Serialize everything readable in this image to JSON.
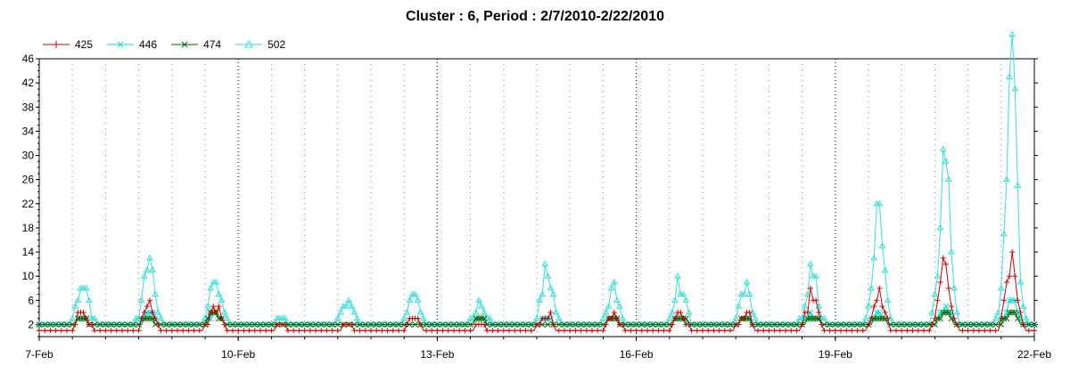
{
  "chart_data": {
    "type": "line",
    "title": "Cluster : 6, Period : 2/7/2010-2/22/2010",
    "xlabel": "",
    "ylabel": "",
    "x_range_days": [
      0,
      15
    ],
    "ylim": [
      0,
      46
    ],
    "yticks": [
      2,
      6,
      10,
      14,
      18,
      22,
      26,
      30,
      34,
      38,
      42,
      46
    ],
    "xticks": [
      {
        "day": 0,
        "label": "7-Feb"
      },
      {
        "day": 3,
        "label": "10-Feb"
      },
      {
        "day": 6,
        "label": "13-Feb"
      },
      {
        "day": 9,
        "label": "16-Feb"
      },
      {
        "day": 12,
        "label": "19-Feb"
      },
      {
        "day": 15,
        "label": "22-Feb"
      }
    ],
    "minor_grid_days": [
      0.5,
      1.0,
      1.5,
      2.0,
      2.5,
      3.5,
      4.0,
      4.5,
      5.0,
      5.5,
      6.5,
      7.0,
      7.5,
      8.0,
      8.5,
      9.5,
      10.0,
      10.5,
      11.0,
      11.5,
      12.5,
      13.0,
      13.5,
      14.0,
      14.5
    ],
    "major_grid_days": [
      3,
      6,
      9,
      12
    ],
    "legend_position": "top-left",
    "series": [
      {
        "name": "425",
        "color": "#cc0000",
        "marker": "plus",
        "baseline": 1,
        "peaks": [
          [
            0.65,
            4
          ],
          [
            1.65,
            5
          ],
          [
            2.65,
            5
          ],
          [
            3.65,
            2
          ],
          [
            4.65,
            2
          ],
          [
            5.65,
            3
          ],
          [
            6.65,
            2
          ],
          [
            7.65,
            4
          ],
          [
            8.65,
            4
          ],
          [
            9.65,
            4
          ],
          [
            10.65,
            4
          ],
          [
            11.65,
            7
          ],
          [
            12.65,
            8
          ],
          [
            13.65,
            11
          ],
          [
            14.65,
            13
          ]
        ]
      },
      {
        "name": "446",
        "color": "#00dddd",
        "marker": "x",
        "baseline": 2,
        "peaks": [
          [
            0.65,
            3
          ],
          [
            1.65,
            4
          ],
          [
            2.65,
            4
          ],
          [
            3.65,
            2
          ],
          [
            4.65,
            2
          ],
          [
            5.65,
            2
          ],
          [
            6.65,
            3
          ],
          [
            7.65,
            3
          ],
          [
            8.65,
            3
          ],
          [
            9.65,
            3
          ],
          [
            10.65,
            3
          ],
          [
            11.65,
            4
          ],
          [
            12.65,
            4
          ],
          [
            13.65,
            5
          ],
          [
            14.65,
            6
          ]
        ]
      },
      {
        "name": "474",
        "color": "#006600",
        "marker": "x",
        "baseline": 2,
        "peaks": [
          [
            0.65,
            3
          ],
          [
            1.65,
            3
          ],
          [
            2.65,
            4
          ],
          [
            3.65,
            2
          ],
          [
            4.65,
            2
          ],
          [
            5.65,
            2
          ],
          [
            6.65,
            3
          ],
          [
            7.65,
            2
          ],
          [
            8.65,
            3
          ],
          [
            9.65,
            3
          ],
          [
            10.65,
            3
          ],
          [
            11.65,
            3
          ],
          [
            12.65,
            3
          ],
          [
            13.65,
            4
          ],
          [
            14.65,
            4
          ]
        ]
      },
      {
        "name": "502",
        "color": "#33dddd",
        "marker": "triangle",
        "baseline": 2,
        "peaks": [
          [
            0.65,
            9
          ],
          [
            1.65,
            13
          ],
          [
            2.65,
            10
          ],
          [
            3.65,
            3
          ],
          [
            4.65,
            6
          ],
          [
            5.65,
            7
          ],
          [
            6.65,
            6
          ],
          [
            7.65,
            11
          ],
          [
            8.65,
            8
          ],
          [
            9.65,
            9
          ],
          [
            10.65,
            8
          ],
          [
            11.65,
            11
          ],
          [
            12.65,
            21
          ],
          [
            13.65,
            28
          ],
          [
            14.65,
            46
          ]
        ]
      }
    ]
  }
}
